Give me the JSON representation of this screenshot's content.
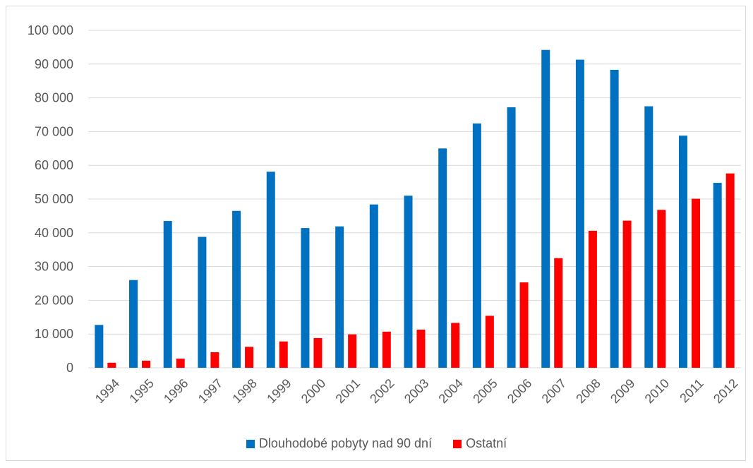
{
  "chart_data": {
    "type": "bar",
    "categories": [
      "1994",
      "1995",
      "1996",
      "1997",
      "1998",
      "1999",
      "2000",
      "2001",
      "2002",
      "2003",
      "2004",
      "2005",
      "2006",
      "2007",
      "2008",
      "2009",
      "2010",
      "2011",
      "2012"
    ],
    "series": [
      {
        "name": "Dlouhodobé pobyty nad 90 dní",
        "color": "#0070c0",
        "values": [
          12700,
          26000,
          43500,
          38800,
          46500,
          58100,
          41400,
          41900,
          48400,
          51000,
          65000,
          72400,
          77200,
          94200,
          91300,
          88300,
          77500,
          68800,
          54800
        ]
      },
      {
        "name": "Ostatní",
        "color": "#ff0000",
        "values": [
          1500,
          2100,
          2700,
          4600,
          6200,
          7800,
          8800,
          9900,
          10700,
          11300,
          13300,
          15400,
          25300,
          32500,
          40600,
          43600,
          46800,
          50100,
          57600
        ]
      }
    ],
    "ylim": [
      0,
      100000
    ],
    "yticks": [
      "0",
      "10 000",
      "20 000",
      "30 000",
      "40 000",
      "50 000",
      "60 000",
      "70 000",
      "80 000",
      "90 000",
      "100 000"
    ],
    "grid": true,
    "legend_position": "bottom"
  }
}
